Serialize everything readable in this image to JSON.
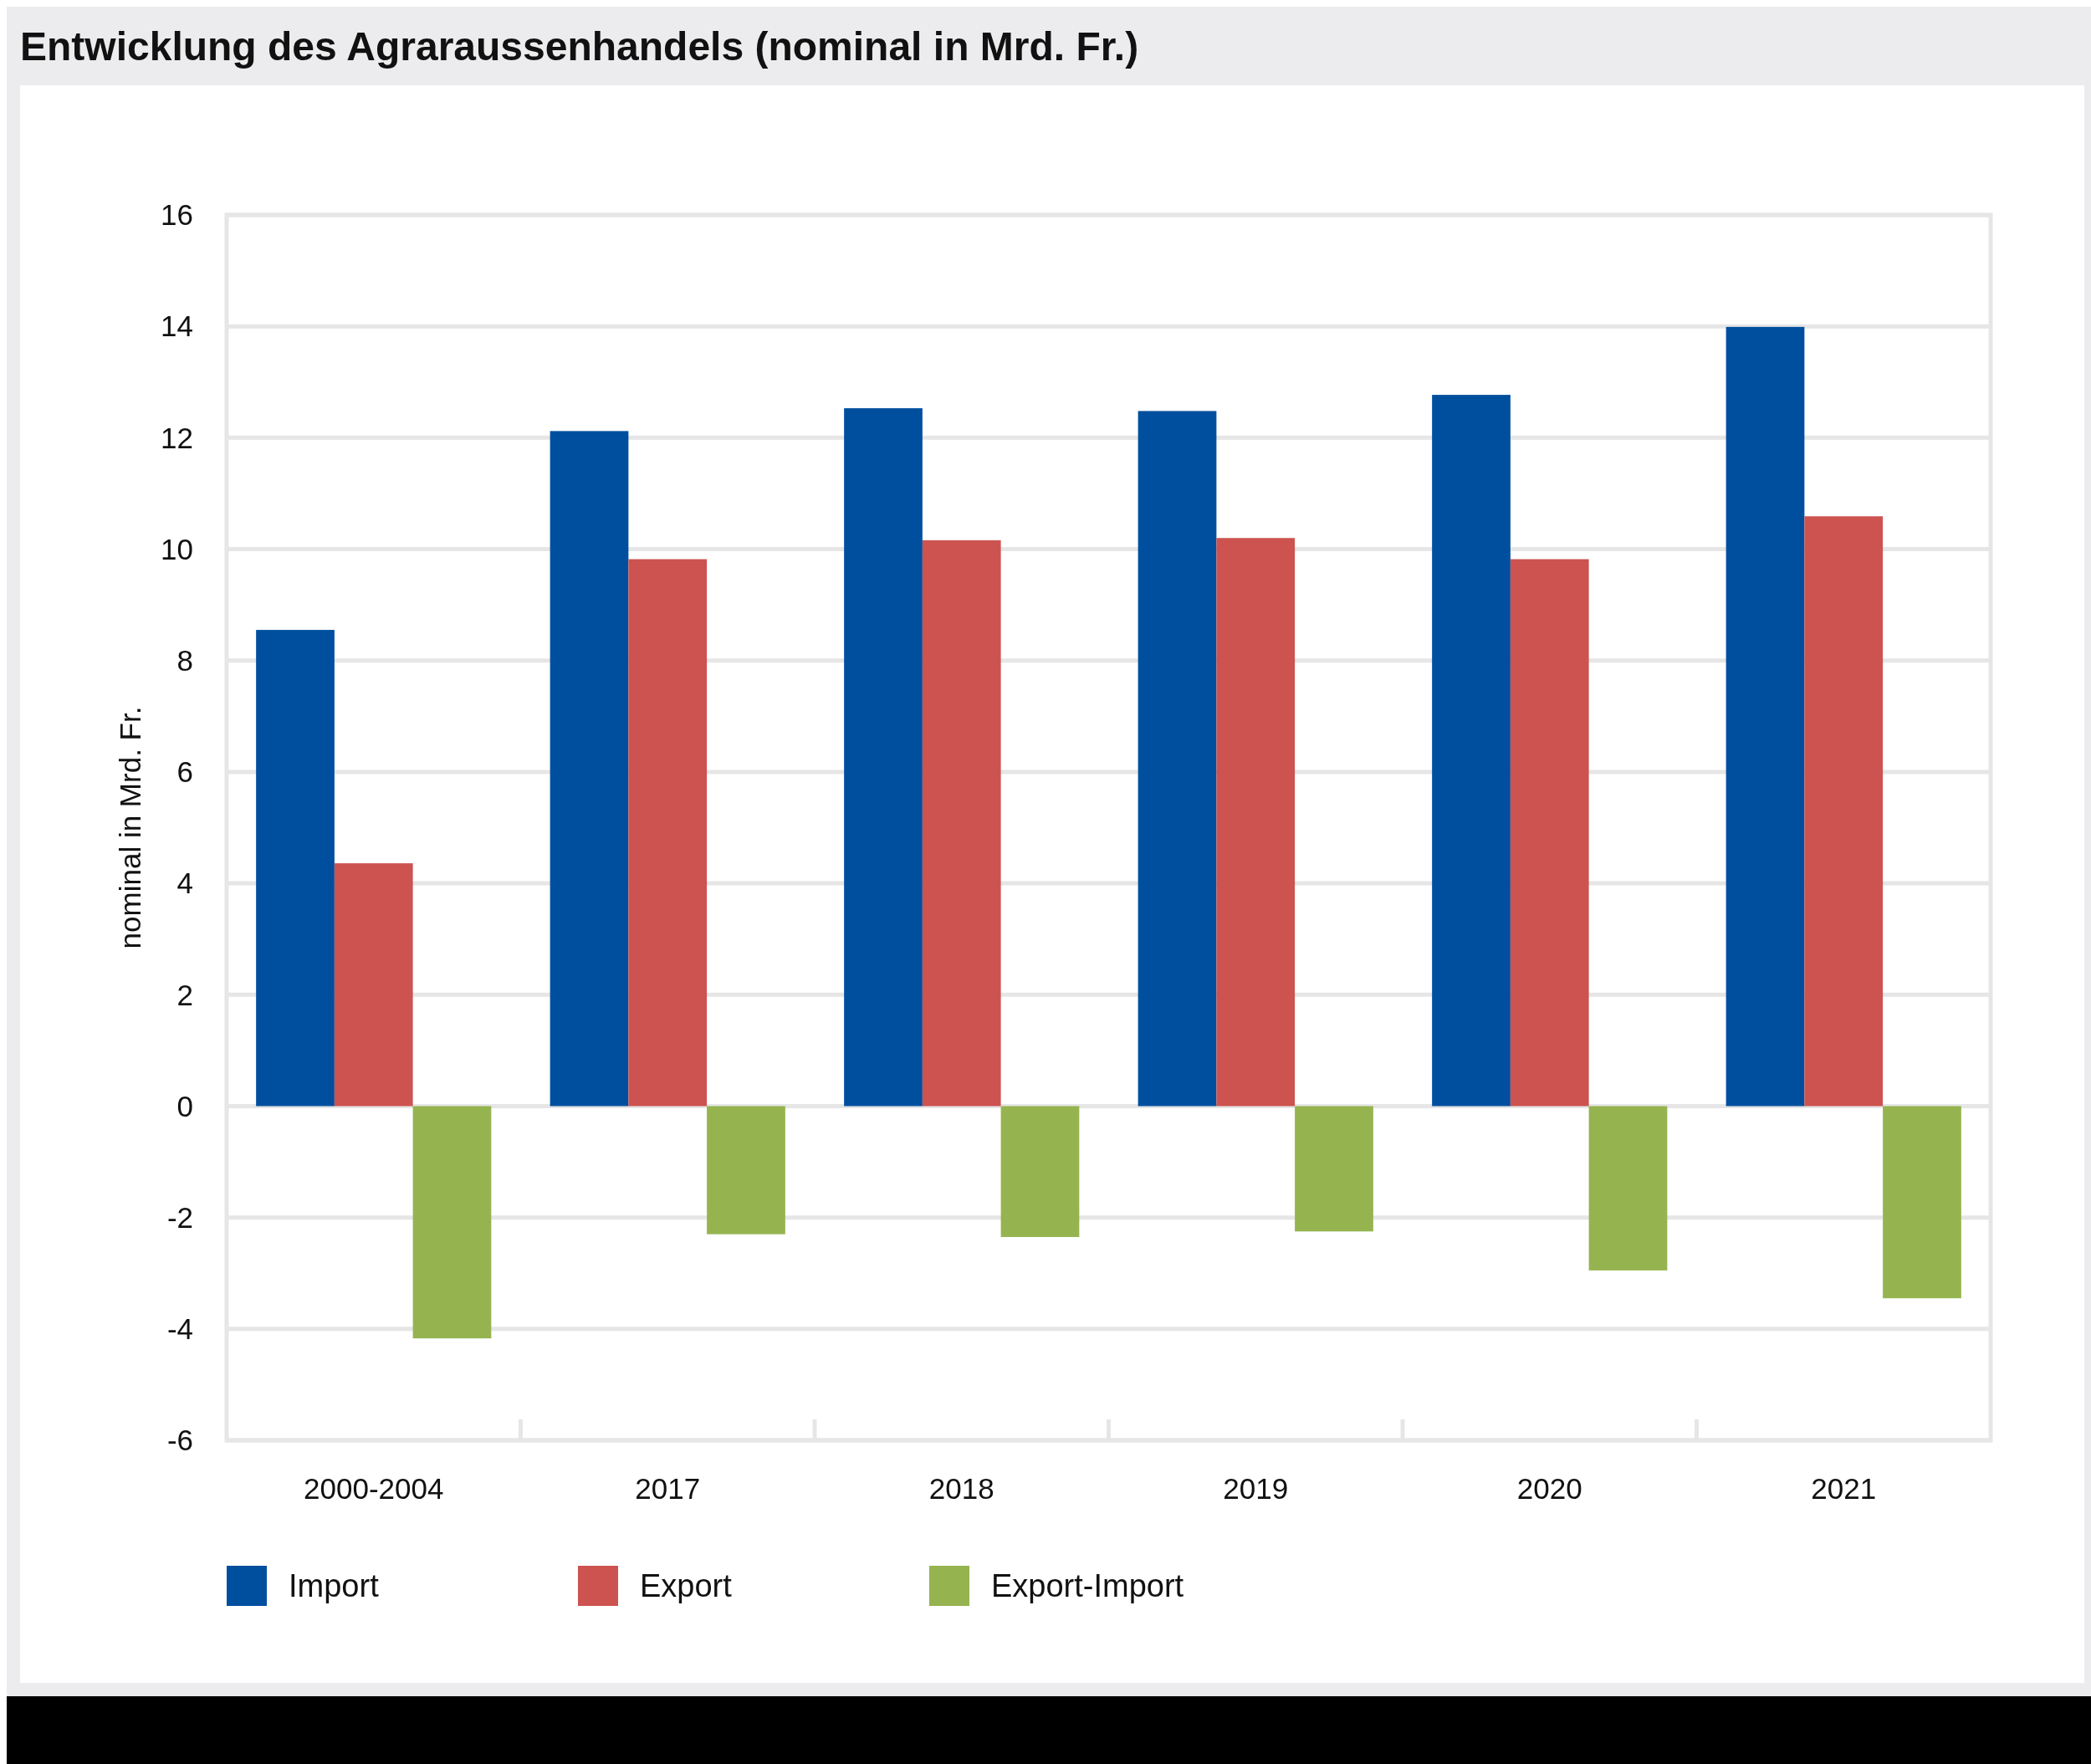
{
  "chart_data": {
    "type": "bar",
    "title": "Entwicklung des Agraraussenhandels (nominal in Mrd. Fr.)",
    "ylabel": "nominal in Mrd. Fr.",
    "categories": [
      "2000-2004",
      "2017",
      "2018",
      "2019",
      "2020",
      "2021"
    ],
    "series": [
      {
        "name": "Import",
        "color": "#004f9f",
        "values": [
          8.55,
          12.12,
          12.53,
          12.48,
          12.77,
          13.99
        ]
      },
      {
        "name": "Export",
        "color": "#cd5350",
        "values": [
          4.36,
          9.82,
          10.16,
          10.2,
          9.82,
          10.59
        ]
      },
      {
        "name": "Export-Import",
        "color": "#95b450",
        "values": [
          -4.17,
          -2.3,
          -2.35,
          -2.25,
          -2.95,
          -3.45
        ]
      }
    ],
    "ylim": [
      -6,
      16
    ],
    "yticks": [
      -6,
      -4,
      -2,
      0,
      2,
      4,
      6,
      8,
      10,
      12,
      14,
      16
    ],
    "grid": "y",
    "legend": "bottom"
  }
}
